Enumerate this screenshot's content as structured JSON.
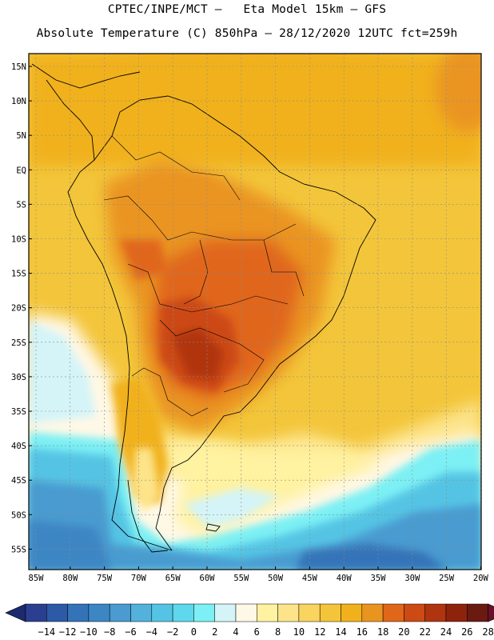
{
  "header": {
    "line1": "CPTEC/INPE/MCT –   Eta Model 15km – GFS",
    "line2": "Absolute Temperature (C) 850hPa – 28/12/2020 12UTC fct=259h"
  },
  "map": {
    "region": "South America",
    "variable": "temperature-850hPa",
    "lat_labels": [
      "15N",
      "10N",
      "5N",
      "EQ",
      "5S",
      "10S",
      "15S",
      "20S",
      "25S",
      "30S",
      "35S",
      "40S",
      "45S",
      "50S",
      "55S"
    ],
    "lon_labels": [
      "85W",
      "80W",
      "75W",
      "70W",
      "65W",
      "60W",
      "55W",
      "50W",
      "45W",
      "40W",
      "35W",
      "30W",
      "25W",
      "20W"
    ]
  },
  "colorbar": {
    "labels": [
      "-14",
      "-12",
      "-10",
      "-8",
      "-6",
      "-4",
      "-2",
      "0",
      "2",
      "4",
      "6",
      "8",
      "10",
      "12",
      "14",
      "16",
      "18",
      "20",
      "22",
      "24",
      "26",
      "28"
    ],
    "colors": [
      "#2a3f8f",
      "#2d5aa6",
      "#3473b8",
      "#3d86c4",
      "#4a9bd0",
      "#52b2dc",
      "#55c4e4",
      "#5dd8ec",
      "#7cf0f4",
      "#d4f4f8",
      "#fff8e6",
      "#fff2a0",
      "#fde48a",
      "#f9d45e",
      "#f3c53a",
      "#f1b11c",
      "#ea9420",
      "#e0661a",
      "#cc4a14",
      "#b0340f",
      "#8e230c",
      "#6a1a10"
    ],
    "low_arrow_color": "#1c2a6e",
    "high_arrow_color": "#6b0f2a"
  }
}
